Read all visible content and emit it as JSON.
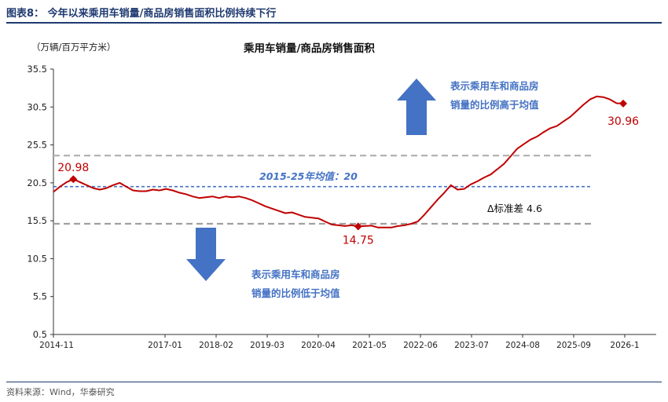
{
  "figure": {
    "title": "图表8：  今年以来乘用车销量/商品房销售面积比例持续下行",
    "source": "资料来源：Wind，华泰研究"
  },
  "chart_data": {
    "type": "line",
    "title": "乘用车销量/商品房销售面积",
    "unit_label": "（万辆/百万平方米）",
    "ylim": [
      0.5,
      35.5
    ],
    "yticks": [
      "35.5",
      "30.5",
      "25.5",
      "20.5",
      "15.5",
      "10.5",
      "5.5",
      "0.5"
    ],
    "xtick_labels": [
      "2014-11",
      "2017-01",
      "2018-02",
      "2019-03",
      "2020-04",
      "2021-05",
      "2022-06",
      "2023-07",
      "2024-08",
      "2025-09",
      "2026-1"
    ],
    "series": [
      {
        "name": "",
        "color": "#c00000",
        "values": [
          19.3,
          20.0,
          20.6,
          20.98,
          20.6,
          20.2,
          19.8,
          19.6,
          19.8,
          20.2,
          20.5,
          20.0,
          19.5,
          19.4,
          19.4,
          19.6,
          19.5,
          19.7,
          19.5,
          19.2,
          19.0,
          18.7,
          18.5,
          18.6,
          18.7,
          18.5,
          18.7,
          18.6,
          18.7,
          18.5,
          18.2,
          17.8,
          17.4,
          17.1,
          16.8,
          16.5,
          16.6,
          16.3,
          16.0,
          15.9,
          15.8,
          15.4,
          15.0,
          14.9,
          14.8,
          14.9,
          14.75,
          14.8,
          14.85,
          14.6,
          14.6,
          14.6,
          14.8,
          14.9,
          15.1,
          15.4,
          16.3,
          17.3,
          18.3,
          19.2,
          20.2,
          19.6,
          19.7,
          20.3,
          20.7,
          21.2,
          21.6,
          22.3,
          23.0,
          24.0,
          25.0,
          25.6,
          26.2,
          26.6,
          27.2,
          27.7,
          28.0,
          28.6,
          29.2,
          30.0,
          30.8,
          31.5,
          31.9,
          31.8,
          31.5,
          31.0,
          30.96
        ],
        "markers": [
          {
            "index": 3,
            "label": "20.98"
          },
          {
            "index": 46,
            "label": "14.75"
          },
          {
            "index": 86,
            "label": "30.96"
          }
        ]
      }
    ],
    "reference_lines": [
      {
        "value": 24.1,
        "label": "",
        "color": "#b3b3b3",
        "style": "dashed"
      },
      {
        "value": 20.0,
        "label": "2015-25年均值：20",
        "color": "#4472c4",
        "style": "dashed"
      },
      {
        "value": 15.1,
        "label": "",
        "color": "#a0a0a0",
        "style": "dashed"
      }
    ],
    "annotations": {
      "above_line1": "表示乘用车和商品房",
      "above_line2": "销量的比例高于均值",
      "below_line1": "表示乘用车和商品房",
      "below_line2": "销量的比例低于均值",
      "std_label": "Δ标准差 4.6"
    },
    "grid": false,
    "legend": "none"
  }
}
